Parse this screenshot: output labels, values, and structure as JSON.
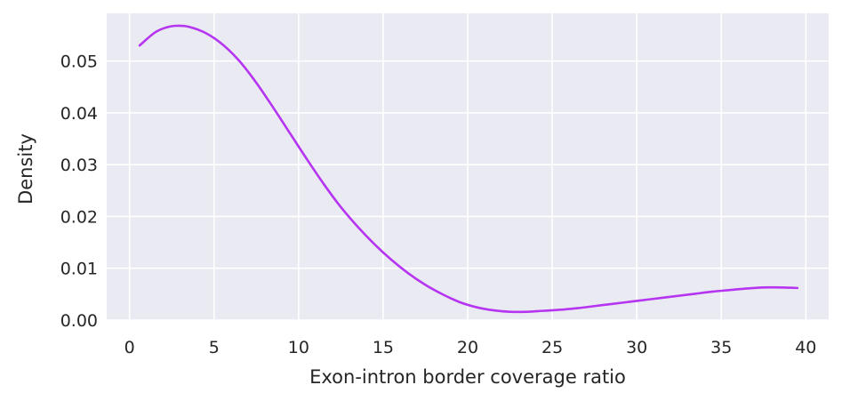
{
  "chart_data": {
    "type": "line",
    "xlabel": "Exon-intron border coverage ratio",
    "ylabel": "Density",
    "xlim": [
      -1.35,
      41.35
    ],
    "ylim": [
      0,
      0.0592
    ],
    "xticks": [
      0,
      5,
      10,
      15,
      20,
      25,
      30,
      35,
      40
    ],
    "xtick_labels": [
      "0",
      "5",
      "10",
      "15",
      "20",
      "25",
      "30",
      "35",
      "40"
    ],
    "yticks": [
      0.0,
      0.01,
      0.02,
      0.03,
      0.04,
      0.05
    ],
    "ytick_labels": [
      "0.00",
      "0.01",
      "0.02",
      "0.03",
      "0.04",
      "0.05"
    ],
    "grid": true,
    "background_color": "#eaeaf2",
    "grid_color": "#ffffff",
    "series": [
      {
        "color": "#b535f0",
        "x": [
          0.6,
          1.5,
          2.2,
          2.8,
          3.5,
          4.5,
          5.5,
          6.5,
          7.5,
          8.5,
          9.5,
          10.5,
          11.5,
          12.5,
          13.5,
          14.5,
          15.5,
          16.5,
          17.5,
          18.5,
          19.5,
          20.5,
          21.5,
          22.5,
          23.5,
          24.5,
          25.5,
          26.5,
          27.5,
          28.5,
          29.5,
          30.5,
          31.5,
          32.5,
          33.5,
          34.5,
          35.5,
          36.5,
          37.5,
          38.5,
          39.5
        ],
        "y": [
          0.053,
          0.0555,
          0.0565,
          0.0568,
          0.0566,
          0.0554,
          0.0532,
          0.05,
          0.0458,
          0.041,
          0.036,
          0.031,
          0.0262,
          0.0218,
          0.018,
          0.0146,
          0.0116,
          0.009,
          0.0068,
          0.005,
          0.0035,
          0.0025,
          0.0019,
          0.0016,
          0.0016,
          0.0018,
          0.002,
          0.0023,
          0.0027,
          0.0031,
          0.0035,
          0.0039,
          0.0043,
          0.0047,
          0.0051,
          0.0055,
          0.0058,
          0.0061,
          0.0063,
          0.0063,
          0.0062
        ]
      }
    ]
  }
}
